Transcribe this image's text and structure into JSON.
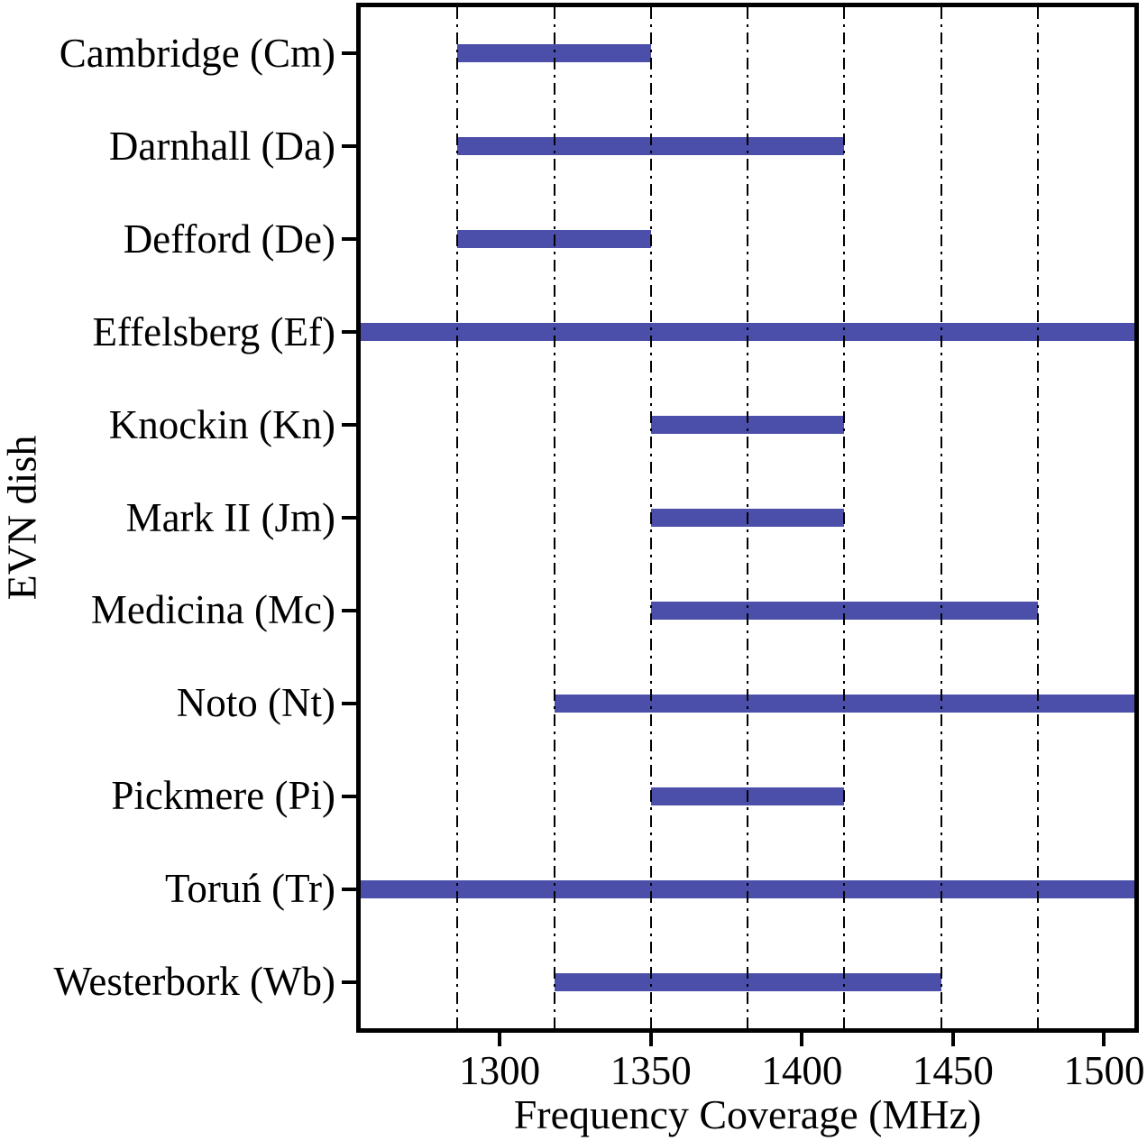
{
  "chart_data": {
    "type": "bar",
    "orientation": "horizontal-range",
    "title": "",
    "xlabel": "Frequency Coverage (MHz)",
    "ylabel": "EVN dish",
    "xlim": [
      1254,
      1510
    ],
    "xticks": [
      1300,
      1350,
      1400,
      1450,
      1500
    ],
    "grid": {
      "style": "dash-dot",
      "axis": "x",
      "positions_mhz": [
        1286,
        1318,
        1350,
        1382,
        1414,
        1446,
        1478
      ],
      "drawn_over_bars": true
    },
    "bar_color": "#4c4fa9",
    "axis_color": "#000000",
    "bars": [
      {
        "dish": "Cambridge (Cm)",
        "start_mhz": 1286,
        "end_mhz": 1350
      },
      {
        "dish": "Darnhall (Da)",
        "start_mhz": 1286,
        "end_mhz": 1414
      },
      {
        "dish": "Defford (De)",
        "start_mhz": 1286,
        "end_mhz": 1350
      },
      {
        "dish": "Effelsberg (Ef)",
        "start_mhz": 1254,
        "end_mhz": 1510
      },
      {
        "dish": "Knockin (Kn)",
        "start_mhz": 1350,
        "end_mhz": 1414
      },
      {
        "dish": "Mark II (Jm)",
        "start_mhz": 1350,
        "end_mhz": 1414
      },
      {
        "dish": "Medicina (Mc)",
        "start_mhz": 1350,
        "end_mhz": 1478
      },
      {
        "dish": "Noto (Nt)",
        "start_mhz": 1318,
        "end_mhz": 1510
      },
      {
        "dish": "Pickmere (Pi)",
        "start_mhz": 1350,
        "end_mhz": 1414
      },
      {
        "dish": "Toruń (Tr)",
        "start_mhz": 1254,
        "end_mhz": 1510
      },
      {
        "dish": "Westerbork (Wb)",
        "start_mhz": 1318,
        "end_mhz": 1446
      }
    ]
  }
}
